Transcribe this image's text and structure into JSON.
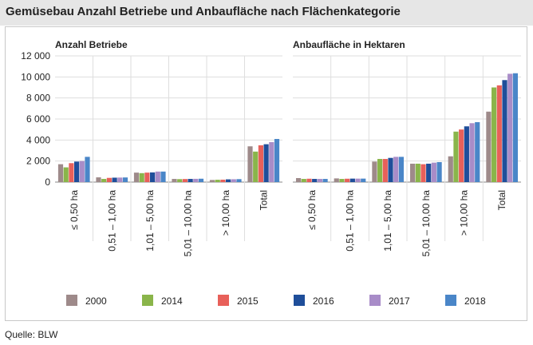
{
  "title": "Gemüsebau Anzahl Betriebe und Anbaufläche nach Flächenkategorie",
  "source": "Quelle: BLW",
  "chart_data": [
    {
      "type": "bar",
      "title": "Anzahl Betriebe",
      "categories": [
        "≤ 0,50 ha",
        "0,51 – 1,00 ha",
        "1,01 – 5,00 ha",
        "5,01 – 10,00 ha",
        "> 10,00 ha",
        "Total"
      ],
      "ylim": [
        0,
        12000
      ],
      "yticks": [
        0,
        2000,
        4000,
        6000,
        8000,
        10000,
        12000
      ],
      "ytick_labels": [
        "0",
        "2 000",
        "4 000",
        "6 000",
        "8 000",
        "10 000",
        "12 000"
      ],
      "series": [
        {
          "name": "2000",
          "color": "#9e8a8a",
          "values": [
            1700,
            450,
            900,
            300,
            200,
            3400
          ]
        },
        {
          "name": "2014",
          "color": "#8ab54a",
          "values": [
            1400,
            300,
            850,
            280,
            220,
            2900
          ]
        },
        {
          "name": "2015",
          "color": "#e8605a",
          "values": [
            1800,
            400,
            900,
            290,
            230,
            3500
          ]
        },
        {
          "name": "2016",
          "color": "#1f4e9a",
          "values": [
            1950,
            420,
            920,
            300,
            260,
            3600
          ]
        },
        {
          "name": "2017",
          "color": "#a88cc8",
          "values": [
            2000,
            430,
            1000,
            310,
            270,
            3800
          ]
        },
        {
          "name": "2018",
          "color": "#4a86c8",
          "values": [
            2400,
            440,
            1000,
            320,
            280,
            4100
          ]
        }
      ]
    },
    {
      "type": "bar",
      "title": "Anbaufläche in Hektaren",
      "categories": [
        "≤ 0,50 ha",
        "0,51 – 1,00 ha",
        "1,01 – 5,00 ha",
        "5,01 – 10,00 ha",
        "> 10,00 ha",
        "Total"
      ],
      "ylim": [
        0,
        12000
      ],
      "series": [
        {
          "name": "2000",
          "color": "#9e8a8a",
          "values": [
            380,
            350,
            1950,
            1750,
            2450,
            6700
          ]
        },
        {
          "name": "2014",
          "color": "#8ab54a",
          "values": [
            300,
            300,
            2200,
            1750,
            4800,
            9000
          ]
        },
        {
          "name": "2015",
          "color": "#e8605a",
          "values": [
            320,
            320,
            2200,
            1700,
            5000,
            9200
          ]
        },
        {
          "name": "2016",
          "color": "#1f4e9a",
          "values": [
            300,
            330,
            2300,
            1750,
            5300,
            9700
          ]
        },
        {
          "name": "2017",
          "color": "#a88cc8",
          "values": [
            300,
            330,
            2400,
            1850,
            5600,
            10300
          ]
        },
        {
          "name": "2018",
          "color": "#4a86c8",
          "values": [
            300,
            330,
            2400,
            1900,
            5700,
            10350
          ]
        }
      ]
    }
  ]
}
